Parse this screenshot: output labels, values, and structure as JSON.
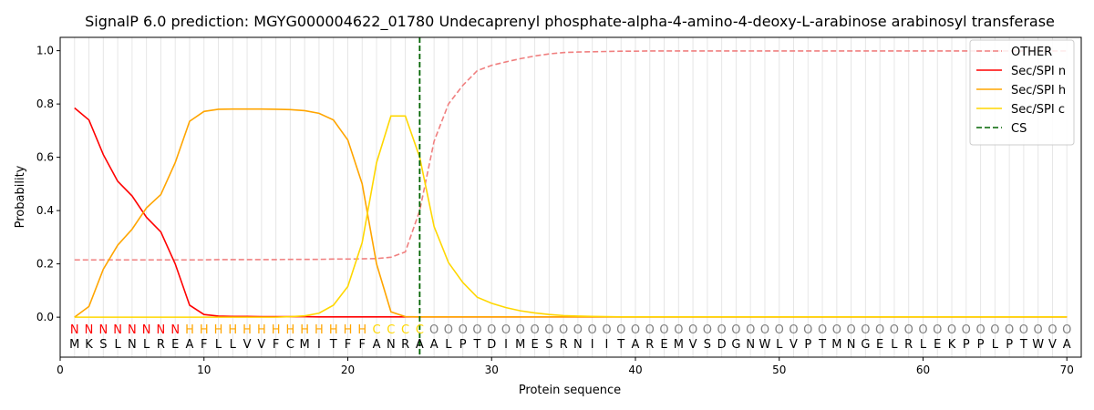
{
  "chart_data": {
    "type": "line",
    "title": "SignalP 6.0 prediction: MGYG000004622_01780 Undecaprenyl phosphate-alpha-4-amino-4-deoxy-L-arabinose arabinosyl transferase",
    "xlabel": "Protein sequence",
    "ylabel": "Probability",
    "xlim": [
      0,
      71
    ],
    "ylim": [
      -0.15,
      1.05
    ],
    "x_ticks": [
      0,
      10,
      20,
      30,
      40,
      50,
      60,
      70
    ],
    "y_ticks": [
      0.0,
      0.2,
      0.4,
      0.6,
      0.8,
      1.0
    ],
    "x_tick_labels": [
      "0",
      "10",
      "20",
      "30",
      "40",
      "50",
      "60",
      "70"
    ],
    "y_tick_labels": [
      "0.0",
      "0.2",
      "0.4",
      "0.6",
      "0.8",
      "1.0"
    ],
    "grid": "vertical lines at each residue",
    "legend_position": "top-right",
    "sequence": [
      "M",
      "K",
      "S",
      "L",
      "N",
      "L",
      "R",
      "E",
      "A",
      "F",
      "L",
      "L",
      "V",
      "V",
      "F",
      "C",
      "M",
      "I",
      "T",
      "F",
      "F",
      "A",
      "N",
      "R",
      "A",
      "A",
      "L",
      "P",
      "T",
      "D",
      "I",
      "M",
      "E",
      "S",
      "R",
      "N",
      "I",
      "I",
      "T",
      "A",
      "R",
      "E",
      "M",
      "V",
      "S",
      "D",
      "G",
      "N",
      "W",
      "L",
      "V",
      "P",
      "T",
      "M",
      "N",
      "G",
      "E",
      "L",
      "R",
      "L",
      "E",
      "K",
      "P",
      "P",
      "L",
      "P",
      "T",
      "W",
      "V",
      "A"
    ],
    "region_labels": [
      "N",
      "N",
      "N",
      "N",
      "N",
      "N",
      "N",
      "N",
      "H",
      "H",
      "H",
      "H",
      "H",
      "H",
      "H",
      "H",
      "H",
      "H",
      "H",
      "H",
      "H",
      "C",
      "C",
      "C",
      "C",
      "O",
      "O",
      "O",
      "O",
      "O",
      "O",
      "O",
      "O",
      "O",
      "O",
      "O",
      "O",
      "O",
      "O",
      "O",
      "O",
      "O",
      "O",
      "O",
      "O",
      "O",
      "O",
      "O",
      "O",
      "O",
      "O",
      "O",
      "O",
      "O",
      "O",
      "O",
      "O",
      "O",
      "O",
      "O",
      "O",
      "O",
      "O",
      "O",
      "O",
      "O",
      "O",
      "O",
      "O",
      "O"
    ],
    "region_colors": {
      "N": "#ff0000",
      "H": "#ffa500",
      "C": "#ffd700",
      "O": "#808080"
    },
    "cleavage_site": 25,
    "series": [
      {
        "name": "OTHER",
        "color": "#f08080",
        "dash": "dashed",
        "values": [
          0.215,
          0.215,
          0.215,
          0.215,
          0.215,
          0.215,
          0.215,
          0.215,
          0.215,
          0.215,
          0.216,
          0.216,
          0.216,
          0.216,
          0.216,
          0.217,
          0.217,
          0.217,
          0.218,
          0.218,
          0.219,
          0.22,
          0.225,
          0.245,
          0.4,
          0.66,
          0.8,
          0.87,
          0.925,
          0.945,
          0.958,
          0.97,
          0.98,
          0.988,
          0.993,
          0.995,
          0.996,
          0.997,
          0.998,
          0.998,
          0.999,
          0.999,
          0.999,
          0.999,
          0.999,
          0.999,
          0.999,
          0.999,
          0.999,
          0.999,
          0.999,
          0.999,
          0.999,
          0.999,
          0.999,
          0.999,
          0.999,
          0.999,
          0.999,
          0.999,
          0.999,
          0.999,
          0.999,
          0.999,
          0.999,
          0.999,
          0.999,
          0.999,
          0.999,
          0.999
        ]
      },
      {
        "name": "Sec/SPI n",
        "color": "#ff0000",
        "dash": "solid",
        "values": [
          0.785,
          0.74,
          0.61,
          0.51,
          0.455,
          0.375,
          0.32,
          0.2,
          0.045,
          0.01,
          0.004,
          0.003,
          0.003,
          0.002,
          0.002,
          0.002,
          0.002,
          0.001,
          0.001,
          0.001,
          0.001,
          0.001,
          0.001,
          0.001,
          0.001,
          0.001,
          0.001,
          0.001,
          0.001,
          0.001,
          0.001,
          0.001,
          0.001,
          0.001,
          0.001,
          0.001,
          0.001,
          0.001,
          0.001,
          0.001,
          0.001,
          0.001,
          0.001,
          0.001,
          0.001,
          0.001,
          0.001,
          0.001,
          0.001,
          0.001,
          0.001,
          0.001,
          0.001,
          0.001,
          0.001,
          0.001,
          0.001,
          0.001,
          0.001,
          0.001,
          0.001,
          0.001,
          0.001,
          0.001,
          0.001,
          0.001,
          0.001,
          0.001,
          0.001,
          0.001
        ]
      },
      {
        "name": "Sec/SPI h",
        "color": "#ffa500",
        "dash": "solid",
        "values": [
          0.0,
          0.04,
          0.18,
          0.27,
          0.33,
          0.41,
          0.46,
          0.58,
          0.735,
          0.772,
          0.78,
          0.781,
          0.781,
          0.781,
          0.78,
          0.779,
          0.775,
          0.765,
          0.74,
          0.665,
          0.5,
          0.2,
          0.02,
          0.002,
          0.001,
          0.001,
          0.001,
          0.001,
          0.001,
          0.001,
          0.001,
          0.001,
          0.001,
          0.001,
          0.001,
          0.001,
          0.001,
          0.001,
          0.001,
          0.001,
          0.001,
          0.001,
          0.001,
          0.001,
          0.001,
          0.001,
          0.001,
          0.001,
          0.001,
          0.001,
          0.001,
          0.001,
          0.001,
          0.001,
          0.001,
          0.001,
          0.001,
          0.001,
          0.001,
          0.001,
          0.001,
          0.001,
          0.001,
          0.001,
          0.001,
          0.001,
          0.001,
          0.001,
          0.001,
          0.001
        ]
      },
      {
        "name": "Sec/SPI c",
        "color": "#ffd700",
        "dash": "solid",
        "values": [
          0.0,
          0.0,
          0.0,
          0.0,
          0.0,
          0.0,
          0.0,
          0.0,
          0.0,
          0.0,
          0.0,
          0.0,
          0.0,
          0.0,
          0.0,
          0.002,
          0.005,
          0.015,
          0.045,
          0.115,
          0.28,
          0.58,
          0.755,
          0.755,
          0.6,
          0.34,
          0.205,
          0.13,
          0.075,
          0.052,
          0.036,
          0.024,
          0.016,
          0.01,
          0.006,
          0.004,
          0.003,
          0.002,
          0.001,
          0.001,
          0.001,
          0.001,
          0.001,
          0.001,
          0.001,
          0.001,
          0.001,
          0.001,
          0.001,
          0.001,
          0.001,
          0.001,
          0.001,
          0.001,
          0.001,
          0.001,
          0.001,
          0.001,
          0.001,
          0.001,
          0.001,
          0.001,
          0.001,
          0.001,
          0.001,
          0.001,
          0.001,
          0.001,
          0.001,
          0.001
        ]
      },
      {
        "name": "CS",
        "color": "#006400",
        "dash": "dashed",
        "values": []
      }
    ]
  }
}
